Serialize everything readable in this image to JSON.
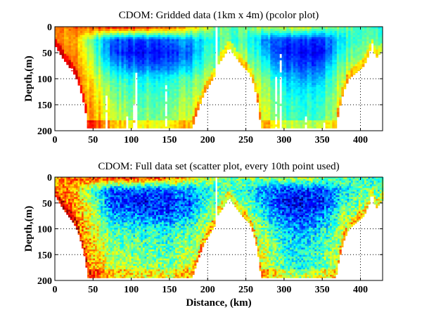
{
  "chart_data": [
    {
      "type": "heatmap",
      "title": "CDOM: Gridded data (1km x 4m) (pcolor plot)",
      "xlabel": "",
      "ylabel": "Depth,(m)",
      "xlim": [
        0,
        429
      ],
      "ylim": [
        0,
        200
      ],
      "y_reversed": true,
      "xticks": [
        "0",
        "50",
        "100",
        "150",
        "200",
        "250",
        "300",
        "350",
        "400"
      ],
      "yticks": [
        "0",
        "50",
        "100",
        "150",
        "200"
      ],
      "grid": true,
      "colormap": "jet",
      "x_km": [
        0,
        25,
        50,
        75,
        100,
        125,
        150,
        175,
        200,
        225,
        250,
        275,
        300,
        325,
        350,
        375,
        400,
        425
      ],
      "depth_m": [
        0,
        25,
        50,
        75,
        100,
        125,
        150,
        175,
        200
      ],
      "values": [
        [
          0.72,
          0.78,
          0.82,
          0.88,
          0.9,
          0.85,
          0.8,
          0.7,
          0.6,
          0.45,
          0.5,
          0.55,
          0.58,
          0.6,
          0.55,
          0.48,
          0.42,
          0.4
        ],
        [
          0.72,
          0.72,
          0.45,
          0.22,
          0.2,
          0.2,
          0.22,
          0.28,
          0.4,
          0.45,
          0.42,
          0.25,
          0.18,
          0.18,
          0.2,
          0.35,
          0.45,
          0.45
        ],
        [
          0.78,
          0.75,
          0.5,
          0.2,
          0.15,
          0.14,
          0.15,
          0.22,
          0.45,
          0.5,
          0.5,
          0.3,
          0.14,
          0.12,
          0.15,
          0.4,
          0.5,
          0.5
        ],
        [
          0.8,
          0.78,
          0.55,
          0.32,
          0.25,
          0.22,
          0.22,
          0.3,
          0.5,
          0.55,
          0.55,
          0.4,
          0.22,
          0.18,
          0.25,
          0.5,
          0.55,
          0.55
        ],
        [
          0.8,
          0.8,
          0.62,
          0.45,
          0.4,
          0.38,
          0.38,
          0.45,
          0.58,
          0.6,
          0.6,
          0.5,
          0.32,
          0.28,
          0.35,
          0.55,
          0.6,
          0.6
        ],
        [
          0.8,
          0.8,
          0.66,
          0.5,
          0.46,
          0.43,
          0.43,
          0.5,
          0.62,
          0.6,
          0.6,
          0.55,
          0.38,
          0.35,
          0.42,
          0.58,
          0.6,
          0.6
        ],
        [
          0.8,
          0.8,
          0.7,
          0.55,
          0.5,
          0.47,
          0.47,
          0.55,
          0.66,
          0.6,
          0.6,
          0.58,
          0.42,
          0.4,
          0.45,
          0.6,
          0.6,
          0.6
        ],
        [
          0.8,
          0.8,
          0.72,
          0.58,
          0.53,
          0.5,
          0.5,
          0.58,
          0.7,
          0.6,
          0.6,
          0.6,
          0.45,
          0.42,
          0.48,
          0.62,
          0.6,
          0.6
        ],
        [
          0.8,
          0.8,
          0.72,
          0.58,
          0.53,
          0.5,
          0.5,
          0.58,
          0.7,
          0.6,
          0.6,
          0.6,
          0.45,
          0.42,
          0.48,
          0.62,
          0.6,
          0.6
        ]
      ],
      "data_extent_depth": [
        [
          0,
          35
        ],
        [
          10,
          60
        ],
        [
          20,
          80
        ],
        [
          25,
          90
        ],
        [
          30,
          105
        ],
        [
          35,
          130
        ],
        [
          40,
          160
        ],
        [
          43,
          195
        ],
        [
          180,
          195
        ],
        [
          185,
          170
        ],
        [
          195,
          130
        ],
        [
          205,
          105
        ],
        [
          209,
          95
        ],
        [
          210,
          0
        ],
        [
          212,
          0
        ],
        [
          213,
          75
        ],
        [
          220,
          60
        ],
        [
          228,
          40
        ],
        [
          235,
          55
        ],
        [
          245,
          75
        ],
        [
          255,
          90
        ],
        [
          260,
          110
        ],
        [
          265,
          140
        ],
        [
          270,
          195
        ],
        [
          368,
          195
        ],
        [
          372,
          160
        ],
        [
          378,
          125
        ],
        [
          385,
          100
        ],
        [
          395,
          88
        ],
        [
          405,
          75
        ],
        [
          412,
          50
        ],
        [
          415,
          28
        ],
        [
          418,
          50
        ],
        [
          421,
          60
        ],
        [
          429,
          45
        ]
      ]
    },
    {
      "type": "scatter",
      "title": "CDOM: Full data set (scatter plot, every 10th point used)",
      "xlabel": "Distance, (km)",
      "ylabel": "Depth,(m)",
      "xlim": [
        0,
        429
      ],
      "ylim": [
        0,
        200
      ],
      "y_reversed": true,
      "xticks": [
        "0",
        "50",
        "100",
        "150",
        "200",
        "250",
        "300",
        "350",
        "400"
      ],
      "yticks": [
        "0",
        "50",
        "100",
        "150",
        "200"
      ],
      "grid": true,
      "colormap": "jet",
      "x_km": [
        0,
        25,
        50,
        75,
        100,
        125,
        150,
        175,
        200,
        225,
        250,
        275,
        300,
        325,
        350,
        375,
        400,
        425
      ],
      "depth_m": [
        0,
        25,
        50,
        75,
        100,
        125,
        150,
        175,
        200
      ],
      "values": [
        [
          0.72,
          0.78,
          0.82,
          0.88,
          0.9,
          0.85,
          0.8,
          0.7,
          0.6,
          0.45,
          0.5,
          0.55,
          0.58,
          0.6,
          0.55,
          0.48,
          0.42,
          0.4
        ],
        [
          0.72,
          0.72,
          0.45,
          0.22,
          0.2,
          0.2,
          0.22,
          0.28,
          0.4,
          0.45,
          0.42,
          0.25,
          0.18,
          0.18,
          0.2,
          0.35,
          0.45,
          0.45
        ],
        [
          0.78,
          0.75,
          0.5,
          0.2,
          0.15,
          0.14,
          0.15,
          0.22,
          0.45,
          0.5,
          0.5,
          0.3,
          0.14,
          0.12,
          0.15,
          0.4,
          0.5,
          0.5
        ],
        [
          0.8,
          0.78,
          0.55,
          0.32,
          0.25,
          0.22,
          0.22,
          0.3,
          0.5,
          0.55,
          0.55,
          0.4,
          0.22,
          0.18,
          0.25,
          0.5,
          0.55,
          0.55
        ],
        [
          0.8,
          0.8,
          0.62,
          0.45,
          0.4,
          0.38,
          0.38,
          0.45,
          0.58,
          0.6,
          0.6,
          0.5,
          0.32,
          0.28,
          0.35,
          0.55,
          0.6,
          0.6
        ],
        [
          0.8,
          0.8,
          0.66,
          0.5,
          0.46,
          0.43,
          0.43,
          0.5,
          0.62,
          0.6,
          0.6,
          0.55,
          0.38,
          0.35,
          0.42,
          0.58,
          0.6,
          0.6
        ],
        [
          0.8,
          0.8,
          0.7,
          0.55,
          0.5,
          0.47,
          0.47,
          0.55,
          0.66,
          0.6,
          0.6,
          0.58,
          0.42,
          0.4,
          0.45,
          0.6,
          0.6,
          0.6
        ],
        [
          0.8,
          0.8,
          0.72,
          0.58,
          0.53,
          0.5,
          0.5,
          0.58,
          0.7,
          0.6,
          0.6,
          0.6,
          0.45,
          0.42,
          0.48,
          0.62,
          0.6,
          0.6
        ],
        [
          0.8,
          0.8,
          0.72,
          0.58,
          0.53,
          0.5,
          0.5,
          0.58,
          0.7,
          0.6,
          0.6,
          0.6,
          0.45,
          0.42,
          0.48,
          0.62,
          0.6,
          0.6
        ]
      ],
      "data_extent_depth": [
        [
          0,
          35
        ],
        [
          10,
          60
        ],
        [
          20,
          80
        ],
        [
          25,
          90
        ],
        [
          30,
          105
        ],
        [
          35,
          130
        ],
        [
          40,
          160
        ],
        [
          43,
          195
        ],
        [
          180,
          195
        ],
        [
          185,
          170
        ],
        [
          195,
          130
        ],
        [
          205,
          105
        ],
        [
          209,
          95
        ],
        [
          210,
          0
        ],
        [
          212,
          0
        ],
        [
          213,
          75
        ],
        [
          220,
          60
        ],
        [
          228,
          40
        ],
        [
          235,
          55
        ],
        [
          245,
          75
        ],
        [
          255,
          90
        ],
        [
          260,
          110
        ],
        [
          265,
          140
        ],
        [
          270,
          195
        ],
        [
          368,
          195
        ],
        [
          372,
          160
        ],
        [
          378,
          125
        ],
        [
          385,
          100
        ],
        [
          395,
          88
        ],
        [
          405,
          75
        ],
        [
          412,
          50
        ],
        [
          415,
          28
        ],
        [
          418,
          50
        ],
        [
          421,
          60
        ],
        [
          429,
          45
        ]
      ]
    }
  ]
}
